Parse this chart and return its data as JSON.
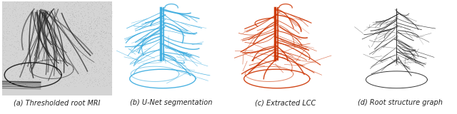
{
  "figure_width": 6.4,
  "figure_height": 1.6,
  "dpi": 100,
  "background_color": "#ffffff",
  "captions": [
    "(a) Thresholded root MRI",
    "(b) U-Net segmentation",
    "(c) Extracted LCC",
    "(d) Root structure graph"
  ],
  "caption_fontsize": 7.0,
  "caption_color": "#222222",
  "n_panels": 4,
  "panel_colors": [
    "#555555",
    "#3aabdf",
    "#cc3300",
    "#222222"
  ],
  "panel_bg": [
    "#d8d8d8",
    "#ffffff",
    "#ffffff",
    "#ffffff"
  ]
}
